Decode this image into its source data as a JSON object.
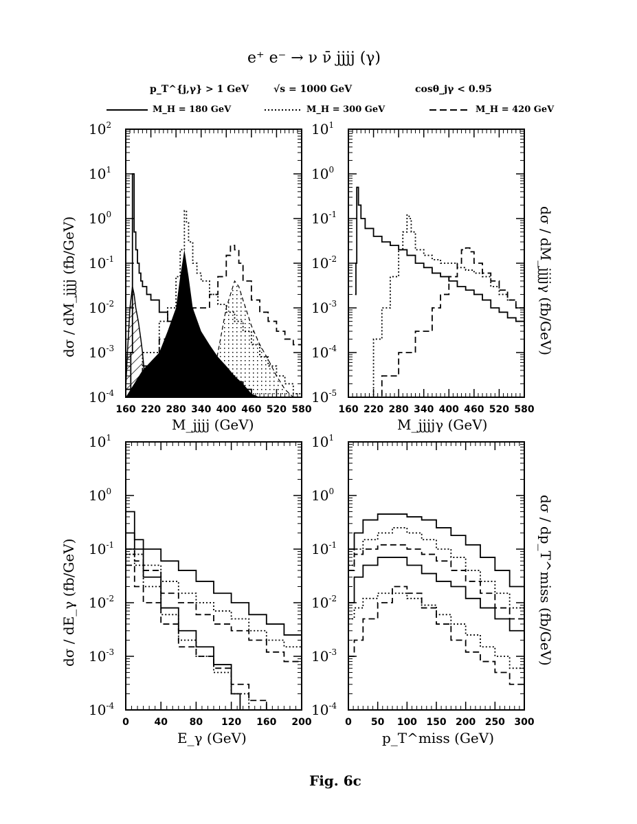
{
  "header": {
    "title": "e⁺ e⁻ →  ν ν̄ jjjj (γ)",
    "cut_pt": "p_T^{j,γ} > 1 GeV",
    "cut_sqrt": "√s =  1000 GeV",
    "cut_cos": "cosθ_jγ < 0.95",
    "legend": [
      {
        "label": "M_H = 180 GeV",
        "style": "solid"
      },
      {
        "label": "M_H = 300 GeV",
        "style": "dotted"
      },
      {
        "label": "M_H = 420 GeV",
        "style": "dashed"
      }
    ]
  },
  "caption": "Fig. 6c",
  "chart_data": [
    {
      "id": "top-left",
      "type": "line",
      "xlabel": "M_jjjj  (GeV)",
      "ylabel": "dσ / dM_jjjj  (fb/GeV)",
      "xlim": [
        160,
        580
      ],
      "ylim_log10": [
        -4,
        2
      ],
      "yscale": "log",
      "xticks": [
        "160",
        "220",
        "280",
        "340",
        "400",
        "460",
        "520",
        "580"
      ],
      "yticks": [
        "10^-4",
        "10^-3",
        "10^-2",
        "10^-1",
        "10^0",
        "10^1",
        "10^2"
      ],
      "series": [
        {
          "style": "solid",
          "x": [
            160,
            172,
            176,
            180,
            184,
            188,
            192,
            196,
            200,
            210,
            220,
            240,
            260,
            280,
            290,
            300,
            310,
            320,
            340,
            360,
            380,
            400,
            420,
            440,
            460,
            480,
            500,
            520,
            540,
            560,
            580
          ],
          "y": [
            0.00015,
            0.001,
            10,
            0.5,
            0.2,
            0.1,
            0.06,
            0.04,
            0.03,
            0.02,
            0.015,
            0.008,
            0.005,
            0.003,
            0.003,
            0.002,
            0.0015,
            0.001,
            0.0007,
            0.0005,
            0.0004,
            0.0003,
            0.00022,
            0.00015,
            0.0001,
            0.0001,
            0.0001,
            0.0001,
            0.0001,
            0.0001,
            0.0001
          ]
        },
        {
          "style": "dotted",
          "x": [
            160,
            200,
            240,
            260,
            280,
            290,
            300,
            305,
            310,
            320,
            330,
            340,
            360,
            380,
            400,
            420,
            440,
            460,
            480,
            500,
            520,
            540,
            560,
            580
          ],
          "y": [
            0.0001,
            0.001,
            0.005,
            0.01,
            0.05,
            0.2,
            1.5,
            0.8,
            0.3,
            0.1,
            0.06,
            0.04,
            0.02,
            0.012,
            0.008,
            0.005,
            0.003,
            0.0015,
            0.0008,
            0.0005,
            0.0003,
            0.0002,
            0.00012,
            0.0001
          ]
        },
        {
          "style": "dashed",
          "x": [
            160,
            200,
            240,
            280,
            320,
            360,
            380,
            400,
            410,
            420,
            430,
            440,
            460,
            480,
            500,
            520,
            540,
            560,
            580
          ],
          "y": [
            0.0001,
            0.0005,
            0.002,
            0.005,
            0.01,
            0.02,
            0.05,
            0.15,
            0.25,
            0.2,
            0.1,
            0.04,
            0.015,
            0.008,
            0.005,
            0.003,
            0.002,
            0.0015,
            0.001
          ]
        }
      ]
    },
    {
      "id": "top-right",
      "type": "line",
      "xlabel": "M_jjjjγ  (GeV)",
      "ylabel": "dσ / dM_jjjjγ  (fb/GeV)",
      "xlim": [
        160,
        580
      ],
      "ylim_log10": [
        -5,
        1
      ],
      "yscale": "log",
      "xticks": [
        "160",
        "220",
        "280",
        "340",
        "400",
        "460",
        "520",
        "580"
      ],
      "yticks": [
        "10^-5",
        "10^-4",
        "10^-3",
        "10^-2",
        "10^-1",
        "10^0",
        "10^1"
      ],
      "series": [
        {
          "style": "solid",
          "x": [
            176,
            178,
            180,
            184,
            190,
            200,
            220,
            240,
            260,
            280,
            300,
            320,
            340,
            360,
            380,
            400,
            420,
            440,
            460,
            480,
            500,
            520,
            540,
            560,
            580
          ],
          "y": [
            0.002,
            0.01,
            0.5,
            0.2,
            0.1,
            0.06,
            0.04,
            0.03,
            0.025,
            0.02,
            0.015,
            0.01,
            0.008,
            0.006,
            0.005,
            0.004,
            0.003,
            0.0025,
            0.002,
            0.0015,
            0.001,
            0.0008,
            0.0006,
            0.0005,
            0.0003
          ]
        },
        {
          "style": "dotted",
          "x": [
            200,
            220,
            240,
            260,
            280,
            290,
            300,
            305,
            310,
            320,
            340,
            360,
            380,
            400,
            420,
            440,
            460,
            480,
            500,
            520,
            540,
            560,
            580
          ],
          "y": [
            1e-05,
            0.0002,
            0.001,
            0.005,
            0.02,
            0.05,
            0.12,
            0.1,
            0.05,
            0.02,
            0.015,
            0.012,
            0.01,
            0.01,
            0.008,
            0.007,
            0.006,
            0.005,
            0.003,
            0.002,
            0.0015,
            0.001,
            0.0005
          ]
        },
        {
          "style": "dashed",
          "x": [
            220,
            240,
            280,
            320,
            360,
            380,
            400,
            420,
            430,
            440,
            450,
            460,
            480,
            500,
            520,
            540,
            560,
            580
          ],
          "y": [
            1e-05,
            3e-05,
            0.0001,
            0.0003,
            0.001,
            0.002,
            0.005,
            0.01,
            0.02,
            0.022,
            0.018,
            0.01,
            0.006,
            0.004,
            0.0025,
            0.0015,
            0.001,
            0.0005
          ]
        }
      ]
    },
    {
      "id": "bottom-left",
      "type": "line",
      "xlabel": "E_γ  (GeV)",
      "ylabel": "dσ / dE_γ  (fb/GeV)",
      "xlim": [
        0,
        200
      ],
      "ylim_log10": [
        -4,
        1
      ],
      "yscale": "log",
      "xticks": [
        "0",
        "40",
        "80",
        "120",
        "160",
        "200"
      ],
      "yticks": [
        "10^-4",
        "10^-3",
        "10^-2",
        "10^-1",
        "10^0",
        "10^1"
      ],
      "series": [
        {
          "style": "solid",
          "x": [
            0,
            10,
            20,
            40,
            60,
            80,
            100,
            120,
            140,
            160,
            180,
            200
          ],
          "y": [
            0.5,
            0.15,
            0.1,
            0.06,
            0.04,
            0.025,
            0.015,
            0.01,
            0.006,
            0.004,
            0.0025,
            0.0018
          ]
        },
        {
          "style": "dotted",
          "x": [
            0,
            10,
            20,
            40,
            60,
            80,
            100,
            120,
            140,
            160,
            180,
            200
          ],
          "y": [
            0.1,
            0.08,
            0.05,
            0.025,
            0.015,
            0.01,
            0.007,
            0.005,
            0.003,
            0.002,
            0.0015,
            0.001
          ]
        },
        {
          "style": "dashed",
          "x": [
            0,
            10,
            20,
            40,
            60,
            80,
            100,
            120,
            140,
            160,
            180,
            200
          ],
          "y": [
            0.1,
            0.06,
            0.04,
            0.015,
            0.01,
            0.006,
            0.004,
            0.003,
            0.002,
            0.0012,
            0.0008,
            0.0005
          ]
        },
        {
          "style": "solid",
          "x": [
            0,
            10,
            20,
            40,
            60,
            80,
            100,
            120,
            130
          ],
          "y": [
            0.2,
            0.1,
            0.03,
            0.008,
            0.003,
            0.0015,
            0.0007,
            0.0002,
            0.0001
          ]
        },
        {
          "style": "dotted",
          "x": [
            0,
            10,
            20,
            40,
            60,
            80,
            100,
            120,
            140
          ],
          "y": [
            0.08,
            0.05,
            0.02,
            0.006,
            0.002,
            0.001,
            0.0005,
            0.0002,
            0.0001
          ]
        },
        {
          "style": "dashed",
          "x": [
            0,
            10,
            20,
            40,
            60,
            80,
            100,
            120,
            140,
            160
          ],
          "y": [
            0.05,
            0.02,
            0.01,
            0.004,
            0.0015,
            0.001,
            0.0006,
            0.0003,
            0.00015,
            0.0001
          ]
        }
      ]
    },
    {
      "id": "bottom-right",
      "type": "line",
      "xlabel": "p_T^miss  (GeV)",
      "ylabel": "dσ / dp_T^miss  (fb/GeV)",
      "xlim": [
        0,
        300
      ],
      "ylim_log10": [
        -4,
        1
      ],
      "yscale": "log",
      "xticks": [
        "0",
        "50",
        "100",
        "150",
        "200",
        "250",
        "300"
      ],
      "yticks": [
        "10^-4",
        "10^-3",
        "10^-2",
        "10^-1",
        "10^0",
        "10^1"
      ],
      "series": [
        {
          "style": "solid",
          "x": [
            0,
            10,
            25,
            50,
            75,
            100,
            125,
            150,
            175,
            200,
            225,
            250,
            275,
            300
          ],
          "y": [
            0.1,
            0.2,
            0.35,
            0.45,
            0.45,
            0.4,
            0.35,
            0.25,
            0.18,
            0.12,
            0.07,
            0.04,
            0.02,
            0.01
          ]
        },
        {
          "style": "dotted",
          "x": [
            0,
            10,
            25,
            50,
            75,
            100,
            125,
            150,
            175,
            200,
            225,
            250,
            275,
            300
          ],
          "y": [
            0.05,
            0.1,
            0.15,
            0.2,
            0.25,
            0.2,
            0.15,
            0.1,
            0.07,
            0.04,
            0.025,
            0.015,
            0.008,
            0.005
          ]
        },
        {
          "style": "dashed",
          "x": [
            0,
            10,
            25,
            50,
            75,
            100,
            125,
            150,
            175,
            200,
            225,
            250,
            275,
            300
          ],
          "y": [
            0.04,
            0.08,
            0.1,
            0.12,
            0.12,
            0.1,
            0.08,
            0.06,
            0.04,
            0.025,
            0.015,
            0.008,
            0.005,
            0.003
          ]
        },
        {
          "style": "solid",
          "x": [
            0,
            10,
            25,
            50,
            75,
            100,
            125,
            150,
            175,
            200,
            225,
            250,
            275,
            300
          ],
          "y": [
            0.01,
            0.03,
            0.05,
            0.07,
            0.07,
            0.05,
            0.035,
            0.025,
            0.02,
            0.012,
            0.008,
            0.005,
            0.003,
            0.002
          ]
        },
        {
          "style": "dotted",
          "x": [
            0,
            10,
            25,
            50,
            75,
            100,
            125,
            150,
            175,
            200,
            225,
            250,
            275,
            300
          ],
          "y": [
            0.005,
            0.008,
            0.012,
            0.015,
            0.015,
            0.012,
            0.009,
            0.006,
            0.004,
            0.0025,
            0.0015,
            0.001,
            0.0006,
            0.0004
          ]
        },
        {
          "style": "dashed",
          "x": [
            0,
            10,
            25,
            50,
            75,
            100,
            125,
            150,
            175,
            200,
            225,
            250,
            275,
            300
          ],
          "y": [
            0.001,
            0.002,
            0.005,
            0.01,
            0.02,
            0.015,
            0.008,
            0.004,
            0.002,
            0.0012,
            0.0008,
            0.0005,
            0.0003,
            0.0002
          ]
        }
      ]
    }
  ]
}
